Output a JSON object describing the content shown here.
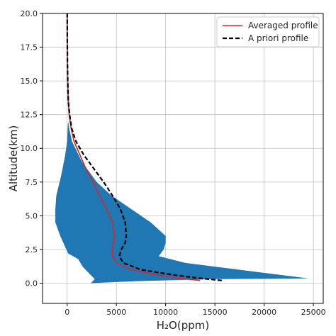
{
  "chart_data": {
    "type": "line",
    "title": "",
    "xlabel": "H₂O(ppm)",
    "ylabel": "Altitude(km)",
    "xlim": [
      -2500,
      26000
    ],
    "ylim": [
      -1.5,
      20
    ],
    "xticks": [
      0,
      5000,
      10000,
      15000,
      20000,
      25000
    ],
    "yticks": [
      0.0,
      2.5,
      5.0,
      7.5,
      10.0,
      12.5,
      15.0,
      17.5,
      20.0
    ],
    "xtick_labels": [
      "0",
      "5000",
      "10000",
      "15000",
      "20000",
      "25000"
    ],
    "ytick_labels": [
      "0.0",
      "2.5",
      "5.0",
      "7.5",
      "10.0",
      "12.5",
      "15.0",
      "17.5",
      "20.0"
    ],
    "grid": true,
    "legend_position": "top-right",
    "series": [
      {
        "name": "Averaged profile",
        "color": "#d62728",
        "style": "solid",
        "x": [
          13500,
          11000,
          8500,
          6500,
          5000,
          4600,
          4600,
          4700,
          4800,
          4600,
          4000,
          3300,
          2600,
          1900,
          1300,
          700,
          400,
          200,
          110,
          60,
          30,
          15,
          5
        ],
        "y": [
          0.2,
          0.4,
          0.7,
          1.0,
          1.5,
          2.0,
          2.5,
          3.0,
          3.5,
          4.5,
          5.5,
          6.5,
          7.5,
          8.5,
          9.5,
          10.5,
          11.5,
          12.5,
          13.5,
          15.0,
          16.5,
          18.0,
          20.0
        ]
      },
      {
        "name": "A priori profile",
        "color": "#000000",
        "style": "dashed",
        "x": [
          15700,
          13000,
          10000,
          7500,
          5700,
          5300,
          5500,
          5900,
          6000,
          5900,
          5400,
          4600,
          3700,
          2700,
          1700,
          900,
          450,
          250,
          120,
          60,
          30,
          15,
          5
        ],
        "y": [
          0.2,
          0.4,
          0.7,
          1.0,
          1.5,
          2.0,
          2.5,
          3.0,
          3.5,
          4.5,
          5.5,
          6.5,
          7.5,
          8.5,
          9.5,
          10.5,
          11.5,
          12.5,
          13.5,
          15.0,
          16.5,
          18.0,
          20.0
        ]
      }
    ],
    "band": {
      "color": "#1f77b4",
      "upper": {
        "x": [
          2400,
          7000,
          15000,
          24500,
          12000,
          9300,
          9800,
          10000,
          10000,
          8500,
          6500,
          4500,
          3000,
          1500,
          500,
          200,
          100
        ],
        "y": [
          0.0,
          0.15,
          0.3,
          0.35,
          1.5,
          2.0,
          2.5,
          3.0,
          3.5,
          4.5,
          5.5,
          6.5,
          7.5,
          9.0,
          10.5,
          11.5,
          12.0
        ]
      },
      "lower": {
        "x": [
          2800,
          1600,
          1100,
          100,
          -700,
          -1200,
          -1200,
          -1100,
          -600,
          -200,
          0,
          50
        ],
        "y": [
          0.3,
          1.2,
          1.8,
          2.2,
          3.5,
          4.5,
          5.5,
          6.5,
          8.0,
          9.5,
          10.5,
          11.5
        ]
      }
    }
  }
}
